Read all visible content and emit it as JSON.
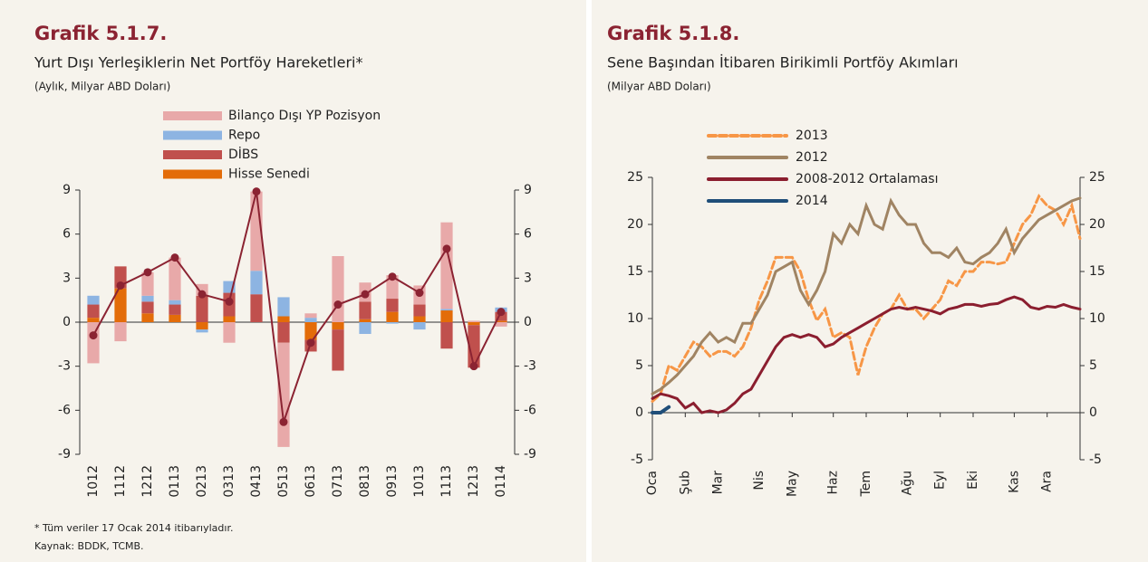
{
  "chart_data": [
    {
      "type": "bar",
      "title": "Grafik 5.1.7.",
      "subtitle": "Yurt Dışı Yerleşiklerin Net Portföy Hareketleri*",
      "unit": "(Aylık, Milyar ABD Doları)",
      "categories": [
        "1012",
        "1112",
        "1212",
        "0113",
        "0213",
        "0313",
        "0413",
        "0513",
        "0613",
        "0713",
        "0813",
        "0913",
        "1013",
        "1113",
        "1213",
        "0114"
      ],
      "stacked": true,
      "series": [
        {
          "name": "Bilanço Dışı YP Pozisyon",
          "color": "#e8a9a9",
          "values": [
            -2.8,
            -1.3,
            1.6,
            2.9,
            0.8,
            -1.4,
            5.4,
            -7.1,
            0.3,
            4.5,
            1.3,
            1.6,
            1.3,
            5.9,
            0.1,
            -0.3
          ]
        },
        {
          "name": "Repo",
          "color": "#8db4e2",
          "values": [
            0.6,
            0,
            0.4,
            0.3,
            -0.2,
            0.8,
            1.6,
            1.3,
            0.3,
            0,
            -0.8,
            -0.1,
            -0.5,
            0.1,
            0,
            0.3
          ]
        },
        {
          "name": "DİBS",
          "color": "#c0504d",
          "values": [
            0.9,
            1.5,
            0.8,
            0.7,
            1.8,
            1.6,
            1.9,
            -1.4,
            -0.8,
            -2.8,
            1.2,
            0.9,
            0.8,
            -1.8,
            -2.9,
            0.6
          ]
        },
        {
          "name": "Hisse Senedi",
          "color": "#e36c09",
          "values": [
            0.3,
            2.3,
            0.6,
            0.5,
            -0.5,
            0.4,
            0,
            0.4,
            -1.2,
            -0.5,
            0.2,
            0.7,
            0.4,
            0.8,
            -0.2,
            0.1
          ]
        },
        {
          "kind": "line",
          "color": "#8b2332",
          "values": [
            -0.9,
            2.5,
            3.4,
            4.4,
            1.9,
            1.4,
            8.9,
            -6.8,
            -1.4,
            1.2,
            1.9,
            3.1,
            2.0,
            5.0,
            -3.0,
            0.7
          ]
        }
      ],
      "ylim": [
        -9,
        9
      ],
      "yticks": [
        -9,
        -6,
        -3,
        0,
        3,
        6,
        9
      ],
      "y2lim": [
        -9,
        9
      ],
      "y2ticks": [
        -9,
        -6,
        -3,
        0,
        3,
        6,
        9
      ]
    },
    {
      "type": "line",
      "title": "Grafik 5.1.8.",
      "subtitle": "Sene Başından İtibaren Birikimli Portföy Akımları",
      "unit": "(Milyar ABD Doları)",
      "categories": [
        "Oca",
        null,
        null,
        null,
        "Şub",
        null,
        null,
        null,
        "Mar",
        null,
        null,
        null,
        null,
        "Nis",
        null,
        null,
        null,
        "May",
        null,
        null,
        null,
        null,
        "Haz",
        null,
        null,
        null,
        "Tem",
        null,
        null,
        null,
        null,
        "Ağu",
        null,
        null,
        null,
        "Eyl",
        null,
        null,
        null,
        "Eki",
        null,
        null,
        null,
        null,
        "Kas",
        null,
        null,
        null,
        "Ara",
        null,
        null,
        null,
        null
      ],
      "series": [
        {
          "name": "2013",
          "color": "#f79646",
          "dashed": true,
          "values": [
            1.2,
            2,
            5,
            4.5,
            6,
            7.5,
            7,
            6,
            6.5,
            6.5,
            6,
            7,
            9,
            12,
            14,
            16.5,
            16.5,
            16.5,
            15,
            12,
            9.8,
            11,
            8,
            8.5,
            8,
            4,
            7,
            9,
            10.5,
            11,
            12.5,
            11,
            11,
            10,
            11,
            12,
            14,
            13.5,
            15,
            15,
            16,
            16,
            15.8,
            16,
            18,
            20,
            21,
            23,
            22,
            21.5,
            20,
            22,
            18.5
          ]
        },
        {
          "name": "2012",
          "color": "#a08463",
          "values": [
            2,
            2.5,
            3.2,
            4,
            5,
            6,
            7.5,
            8.5,
            7.5,
            8,
            7.5,
            9.5,
            9.5,
            11,
            12.5,
            15,
            15.5,
            16,
            13,
            11.5,
            13,
            15,
            19,
            18,
            20,
            19,
            22,
            20,
            19.5,
            22.5,
            21,
            20,
            20,
            18,
            17,
            17,
            16.5,
            17.5,
            16,
            15.8,
            16.5,
            17,
            18,
            19.5,
            17,
            18.5,
            19.5,
            20.5,
            21,
            21.5,
            22,
            22.5,
            22.8
          ]
        },
        {
          "name": "2008-2012 Ortalaması",
          "color": "#8b1e2f",
          "values": [
            1.5,
            2,
            1.8,
            1.5,
            0.5,
            1,
            0,
            0.2,
            0,
            0.3,
            1,
            2,
            2.5,
            4,
            5.5,
            7,
            8,
            8.3,
            8,
            8.3,
            8,
            7,
            7.3,
            8,
            8.5,
            9,
            9.5,
            10,
            10.5,
            11,
            11.2,
            11,
            11.2,
            11,
            10.8,
            10.5,
            11,
            11.2,
            11.5,
            11.5,
            11.3,
            11.5,
            11.6,
            12,
            12.3,
            12,
            11.2,
            11,
            11.3,
            11.2,
            11.5,
            11.2,
            11.0
          ]
        },
        {
          "name": "2014",
          "color": "#1f4e79",
          "width": 4,
          "values": [
            0,
            0,
            0.6,
            null,
            null,
            null,
            null,
            null,
            null,
            null,
            null,
            null,
            null,
            null,
            null,
            null,
            null,
            null,
            null,
            null,
            null,
            null,
            null,
            null,
            null,
            null,
            null,
            null,
            null,
            null,
            null,
            null,
            null,
            null,
            null,
            null,
            null,
            null,
            null,
            null,
            null,
            null,
            null,
            null,
            null,
            null,
            null,
            null,
            null,
            null,
            null,
            null,
            null
          ]
        }
      ],
      "ylim": [
        -5,
        25
      ],
      "yticks": [
        -5,
        0,
        5,
        10,
        15,
        20,
        25
      ],
      "y2lim": [
        -5,
        25
      ],
      "y2ticks": [
        -5,
        0,
        5,
        10,
        15,
        20,
        25
      ]
    }
  ],
  "notes": [
    "* Tüm veriler 17 Ocak 2014 itibarıyladır.",
    "Kaynak: BDDK, TCMB."
  ]
}
